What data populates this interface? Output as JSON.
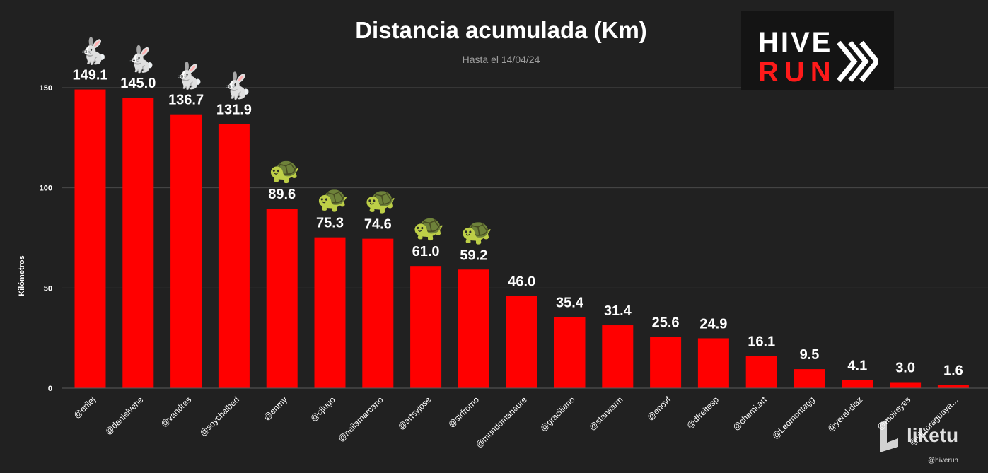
{
  "chart_data": {
    "type": "bar",
    "title": "Distancia acumulada (Km)",
    "subtitle": "Hasta el 14/04/24",
    "ylabel": "Kilómetros",
    "xlabel": "",
    "ylim": [
      0,
      150
    ],
    "yticks": [
      0,
      50,
      100,
      150
    ],
    "grid": true,
    "bar_color": "#ff0000",
    "categories": [
      "@erilej",
      "@danielvehe",
      "@vandres",
      "@soychalbed",
      "@enmy",
      "@cjlugo",
      "@neilamarcano",
      "@artsyjose",
      "@sirfromo",
      "@mundomanaure",
      "@graciliano",
      "@starwarm",
      "@enovf",
      "@dfreitesp",
      "@chemi.art",
      "@Leomontagg",
      "@yeral-diaz",
      "@moireyes",
      "@victoraguaya…"
    ],
    "values": [
      149.1,
      145.0,
      136.7,
      131.9,
      89.6,
      75.3,
      74.6,
      61.0,
      59.2,
      46.0,
      35.4,
      31.4,
      25.6,
      24.9,
      16.1,
      9.5,
      4.1,
      3.0,
      1.6
    ],
    "value_labels": [
      "149.1",
      "145.0",
      "136.7",
      "131.9",
      "89.6",
      "75.3",
      "74.6",
      "61.0",
      "59.2",
      "46.0",
      "35.4",
      "31.4",
      "25.6",
      "24.9",
      "16.1",
      "9.5",
      "4.1",
      "3.0",
      "1.6"
    ],
    "emoji_markers": [
      "🐇",
      "🐇",
      "🐇",
      "🐇",
      "🐢",
      "🐢",
      "🐢",
      "🐢",
      "🐢",
      "",
      "",
      "",
      "",
      "",
      "",
      "",
      "",
      "",
      ""
    ]
  },
  "logo": {
    "line1": "HIVE",
    "line2": "RUN"
  },
  "watermark": {
    "text": "liketu"
  },
  "handle": "@hiverun"
}
